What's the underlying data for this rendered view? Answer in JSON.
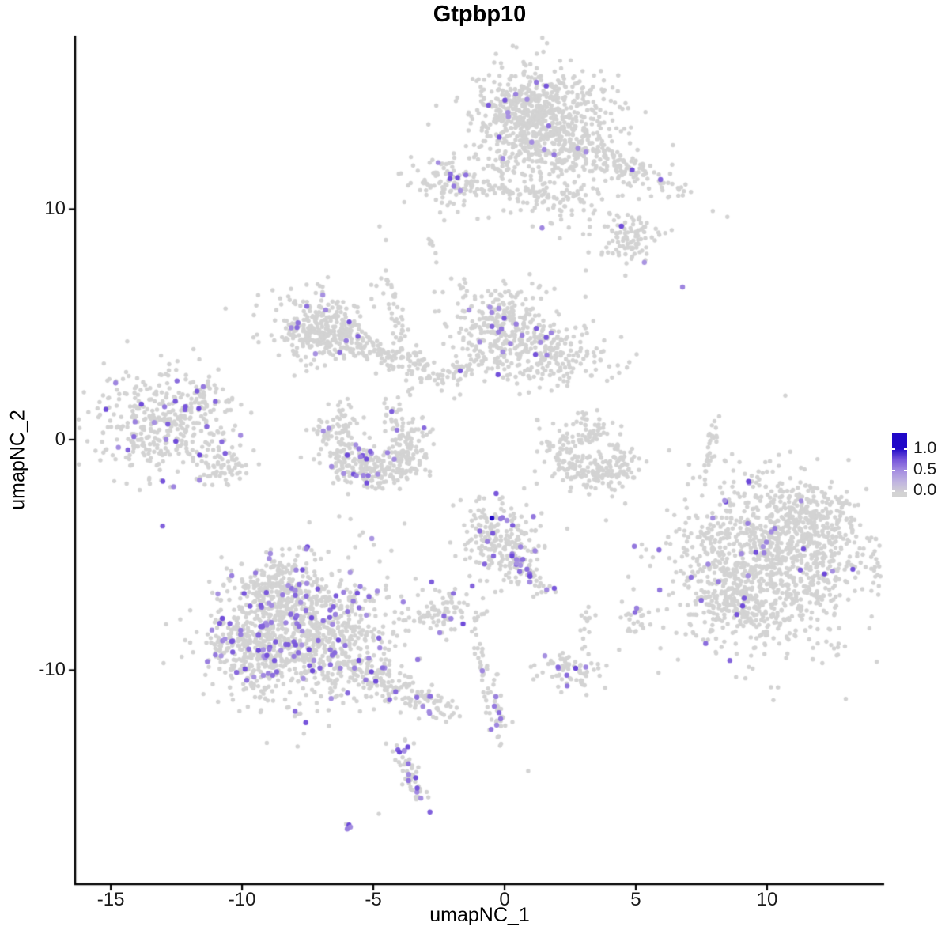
{
  "title": "Gtpbp10",
  "chart_data": {
    "type": "scatter",
    "title": "Gtpbp10",
    "xlabel": "umapNC_1",
    "ylabel": "umapNC_2",
    "xlim": [
      -16.36,
      14.46
    ],
    "ylim": [
      -19.28,
      17.53
    ],
    "x_ticks": [
      -15,
      -10,
      -5,
      0,
      5,
      10
    ],
    "y_ticks": [
      10,
      0,
      -10
    ],
    "grid": false,
    "background": "#ffffff",
    "axis_color": "#000000",
    "point_radius_px": 2.7,
    "expr_point_radius_px": 3.2,
    "color_stops": [
      [
        0.0,
        "#d3d3d3"
      ],
      [
        0.3,
        "#bcaee3"
      ],
      [
        0.55,
        "#9f86e0"
      ],
      [
        0.8,
        "#6b46d9"
      ],
      [
        1.0,
        "#2008c8"
      ]
    ],
    "colorbar": {
      "tick_labels": [
        "1.0",
        "0.5",
        "0.0"
      ],
      "tick_values": [
        1.0,
        0.5,
        0.0
      ],
      "low_color": "#d3d3d3",
      "high_color": "#2008c8",
      "position": "right"
    },
    "clusters": [
      {
        "name": "top-main",
        "cx": 1.51,
        "cy": 13.65,
        "sx": 1.36,
        "sy": 1.35,
        "rot": 0,
        "n": 800,
        "expr_frac": 0.016
      },
      {
        "name": "top-main-left",
        "cx": 0.6,
        "cy": 14.51,
        "sx": 0.6,
        "sy": 0.5,
        "rot": 0,
        "n": 90,
        "expr_frac": 0.03
      },
      {
        "name": "top-arm",
        "cx": 4.22,
        "cy": 11.97,
        "sx": 1.5,
        "sy": 0.35,
        "rot": -25,
        "n": 150,
        "expr_frac": 0.025
      },
      {
        "name": "top-bridge",
        "cx": 2.05,
        "cy": 10.43,
        "sx": 0.85,
        "sy": 0.6,
        "rot": 0,
        "n": 65,
        "expr_frac": 0.01
      },
      {
        "name": "top-right-blob",
        "cx": 4.76,
        "cy": 8.75,
        "sx": 0.68,
        "sy": 0.58,
        "rot": 0,
        "n": 105,
        "expr_frac": 0.03
      },
      {
        "name": "topleft-small",
        "cx": -2.29,
        "cy": 11.22,
        "sx": 0.85,
        "sy": 0.5,
        "rot": -8,
        "n": 100,
        "expr_frac": 0.05
      },
      {
        "name": "topleft-chain",
        "cx": 0.09,
        "cy": 10.81,
        "sx": 1.5,
        "sy": 0.16,
        "rot": -6,
        "n": 60,
        "expr_frac": 0.0
      },
      {
        "name": "tiny-streak",
        "cx": -2.83,
        "cy": 8.4,
        "sx": 0.33,
        "sy": 0.07,
        "rot": -69,
        "n": 7,
        "expr_frac": 0.0
      },
      {
        "name": "midleft-main",
        "cx": -7.05,
        "cy": 4.94,
        "sx": 0.9,
        "sy": 0.82,
        "rot": 0,
        "n": 280,
        "expr_frac": 0.05
      },
      {
        "name": "midleft-arm",
        "cx": -5.12,
        "cy": 3.84,
        "sx": 1.45,
        "sy": 0.32,
        "rot": -19,
        "n": 150,
        "expr_frac": 0.02
      },
      {
        "name": "bridge-diag",
        "cx": -4.13,
        "cy": 5.42,
        "sx": 1.75,
        "sy": 0.16,
        "rot": -79,
        "n": 50,
        "expr_frac": 0.02
      },
      {
        "name": "bridge-diag2",
        "cx": -3.22,
        "cy": 3.33,
        "sx": 0.72,
        "sy": 0.13,
        "rot": -62,
        "n": 22,
        "expr_frac": 0.0
      },
      {
        "name": "center-main",
        "cx": -0.06,
        "cy": 4.87,
        "sx": 0.95,
        "sy": 1.0,
        "rot": 0,
        "n": 300,
        "expr_frac": 0.045
      },
      {
        "name": "center-right",
        "cx": 1.84,
        "cy": 3.6,
        "sx": 1.05,
        "sy": 0.7,
        "rot": 0,
        "n": 200,
        "expr_frac": 0.035
      },
      {
        "name": "center-leftarm",
        "cx": -1.57,
        "cy": 3.05,
        "sx": 0.8,
        "sy": 0.22,
        "rot": 18,
        "n": 55,
        "expr_frac": 0.02
      },
      {
        "name": "cres-l-1",
        "cx": -6.39,
        "cy": 0.1,
        "sx": 0.5,
        "sy": 0.42,
        "rot": 0,
        "n": 60,
        "expr_frac": 0.1
      },
      {
        "name": "cres-l-2",
        "cx": -5.93,
        "cy": -0.96,
        "sx": 0.55,
        "sy": 0.42,
        "rot": 0,
        "n": 85,
        "expr_frac": 0.11
      },
      {
        "name": "cres-l-3",
        "cx": -4.88,
        "cy": -1.37,
        "sx": 0.6,
        "sy": 0.42,
        "rot": 0,
        "n": 95,
        "expr_frac": 0.09
      },
      {
        "name": "cres-l-4",
        "cx": -3.92,
        "cy": -0.79,
        "sx": 0.55,
        "sy": 0.45,
        "rot": 0,
        "n": 80,
        "expr_frac": 0.04
      },
      {
        "name": "cres-l-5",
        "cx": -3.58,
        "cy": 0.17,
        "sx": 0.42,
        "sy": 0.42,
        "rot": 0,
        "n": 48,
        "expr_frac": 0.03
      },
      {
        "name": "cres-l-hook",
        "cx": -6.2,
        "cy": 1.1,
        "sx": 0.32,
        "sy": 0.35,
        "rot": 0,
        "n": 26,
        "expr_frac": 0.06
      },
      {
        "name": "cres-l-top",
        "cx": -4.25,
        "cy": 1.13,
        "sx": 0.3,
        "sy": 0.4,
        "rot": 0,
        "n": 22,
        "expr_frac": 0.05
      },
      {
        "name": "cres-r-1",
        "cx": 2.05,
        "cy": -0.17,
        "sx": 0.42,
        "sy": 0.4,
        "rot": 0,
        "n": 40,
        "expr_frac": 0.0
      },
      {
        "name": "cres-r-2",
        "cx": 2.68,
        "cy": -1.13,
        "sx": 0.55,
        "sy": 0.4,
        "rot": 0,
        "n": 70,
        "expr_frac": 0.0
      },
      {
        "name": "cres-r-3",
        "cx": 3.58,
        "cy": -1.48,
        "sx": 0.6,
        "sy": 0.38,
        "rot": 0,
        "n": 75,
        "expr_frac": 0.0
      },
      {
        "name": "cres-r-4",
        "cx": 4.37,
        "cy": -0.79,
        "sx": 0.45,
        "sy": 0.42,
        "rot": 0,
        "n": 48,
        "expr_frac": 0.0
      },
      {
        "name": "cres-r-diag",
        "cx": 3.43,
        "cy": 0.24,
        "sx": 0.45,
        "sy": 0.15,
        "rot": 35,
        "n": 35,
        "expr_frac": 0.0
      },
      {
        "name": "cres-r-top",
        "cx": 2.95,
        "cy": 0.82,
        "sx": 0.25,
        "sy": 0.25,
        "rot": 0,
        "n": 14,
        "expr_frac": 0.0
      },
      {
        "name": "left-main",
        "cx": -13.01,
        "cy": 0.69,
        "sx": 1.35,
        "sy": 1.2,
        "rot": 0,
        "n": 400,
        "expr_frac": 0.1
      },
      {
        "name": "left-arm",
        "cx": -11.69,
        "cy": 1.92,
        "sx": 0.5,
        "sy": 0.14,
        "rot": 50,
        "n": 26,
        "expr_frac": 0.12
      },
      {
        "name": "left-sub",
        "cx": -10.75,
        "cy": -1.17,
        "sx": 0.55,
        "sy": 0.35,
        "rot": -10,
        "n": 55,
        "expr_frac": 0.02
      },
      {
        "name": "right-main",
        "cx": 10.18,
        "cy": -5.21,
        "sx": 1.85,
        "sy": 1.75,
        "rot": -15,
        "n": 1200,
        "expr_frac": 0.014
      },
      {
        "name": "right-ne",
        "cx": 11.81,
        "cy": -3.29,
        "sx": 0.9,
        "sy": 0.62,
        "rot": -20,
        "n": 150,
        "expr_frac": 0.01
      },
      {
        "name": "right-sw",
        "cx": 8.52,
        "cy": -7.07,
        "sx": 0.72,
        "sy": 0.6,
        "rot": 0,
        "n": 120,
        "expr_frac": 0.035
      },
      {
        "name": "cbot-main",
        "cx": -0.3,
        "cy": -4.49,
        "sx": 0.85,
        "sy": 0.95,
        "rot": 0,
        "n": 215,
        "expr_frac": 0.04
      },
      {
        "name": "cbot-tail",
        "cx": 1.05,
        "cy": -5.8,
        "sx": 0.72,
        "sy": 0.2,
        "rot": -53,
        "n": 45,
        "expr_frac": 0.25
      },
      {
        "name": "bl-main",
        "cx": -7.59,
        "cy": -8.34,
        "sx": 1.7,
        "sy": 1.55,
        "rot": 0,
        "n": 900,
        "expr_frac": 0.085
      },
      {
        "name": "bl-left",
        "cx": -9.49,
        "cy": -9.19,
        "sx": 0.9,
        "sy": 0.85,
        "rot": 0,
        "n": 250,
        "expr_frac": 0.12
      },
      {
        "name": "bl-top",
        "cx": -8.64,
        "cy": -6.38,
        "sx": 0.75,
        "sy": 0.6,
        "rot": 0,
        "n": 160,
        "expr_frac": 0.1
      },
      {
        "name": "bl-tail",
        "cx": -4.49,
        "cy": -10.57,
        "sx": 1.5,
        "sy": 0.35,
        "rot": -27,
        "n": 190,
        "expr_frac": 0.09
      },
      {
        "name": "small-mid",
        "cx": -2.41,
        "cy": -7.44,
        "sx": 0.72,
        "sy": 0.45,
        "rot": 0,
        "n": 85,
        "expr_frac": 0.1
      },
      {
        "name": "small-pair",
        "cx": -1.11,
        "cy": -7.72,
        "sx": 0.18,
        "sy": 0.12,
        "rot": 0,
        "n": 5,
        "expr_frac": 0.0
      },
      {
        "name": "small-r-blob",
        "cx": 4.94,
        "cy": -7.79,
        "sx": 0.3,
        "sy": 0.38,
        "rot": 0,
        "n": 22,
        "expr_frac": 0.08
      },
      {
        "name": "small-gray",
        "cx": 3.19,
        "cy": -8.03,
        "sx": 0.25,
        "sy": 0.3,
        "rot": 0,
        "n": 12,
        "expr_frac": 0.0
      },
      {
        "name": "small-bot",
        "cx": 2.38,
        "cy": -9.95,
        "sx": 0.72,
        "sy": 0.4,
        "rot": 0,
        "n": 75,
        "expr_frac": 0.09
      },
      {
        "name": "streak-mid",
        "cx": -0.51,
        "cy": -11.11,
        "sx": 1.35,
        "sy": 0.17,
        "rot": -78,
        "n": 60,
        "expr_frac": 0.04
      },
      {
        "name": "vsmall-curve",
        "cx": -3.46,
        "cy": -14.75,
        "sx": 0.95,
        "sy": 0.24,
        "rot": -74,
        "n": 55,
        "expr_frac": 0.3
      },
      {
        "name": "tiny-pair-bl",
        "cx": -6.05,
        "cy": -16.74,
        "sx": 0.2,
        "sy": 0.08,
        "rot": -35,
        "n": 4,
        "expr_frac": 0.5
      },
      {
        "name": "vstreak-right",
        "cx": 7.8,
        "cy": -0.34,
        "sx": 0.78,
        "sy": 0.13,
        "rot": 80,
        "n": 28,
        "expr_frac": 0.0
      }
    ],
    "expr_points": [
      [
        -0.48,
        -3.4,
        1.0
      ],
      [
        -0.15,
        -3.43,
        0.6
      ],
      [
        0.09,
        -3.5,
        0.5
      ],
      [
        6.78,
        6.62,
        0.55
      ],
      [
        -11.48,
        2.3,
        0.6
      ],
      [
        -2.47,
        -8.37,
        0.55
      ],
      [
        -0.39,
        -11.56,
        0.6
      ],
      [
        -0.21,
        -11.84,
        0.65
      ],
      [
        -0.15,
        -12.11,
        0.6
      ],
      [
        -0.3,
        -12.38,
        0.55
      ],
      [
        -0.51,
        -12.56,
        0.6
      ]
    ],
    "gray_singles": [
      [
        -10.63,
        5.69
      ],
      [
        -4.7,
        7.0
      ],
      [
        -1.78,
        9.88
      ],
      [
        0.9,
        -14.37
      ],
      [
        -4.79,
        -16.23
      ],
      [
        0.3,
        -12.25
      ],
      [
        3.61,
        0.89
      ]
    ]
  }
}
